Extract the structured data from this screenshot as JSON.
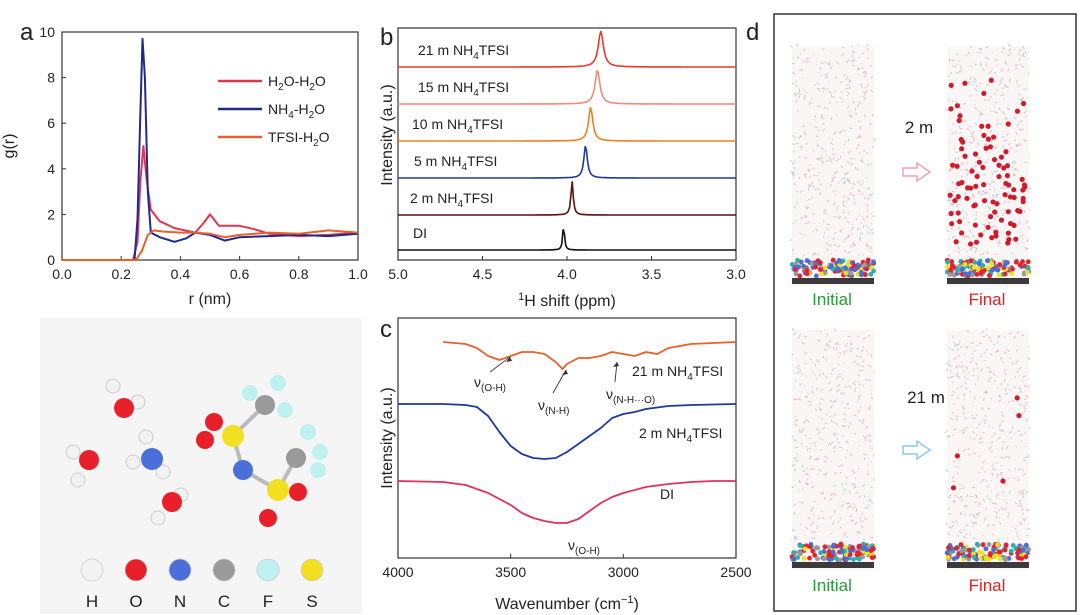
{
  "colors": {
    "h2o": "#e23650",
    "nh4": "#1f2a8a",
    "tfsi": "#e8612c",
    "green": "#2a9a3a",
    "red": "#e02020",
    "pink_arrow": "#f2a0b0",
    "blue_arrow": "#8cc8ec"
  },
  "panels": {
    "a": "a",
    "b": "b",
    "c": "c",
    "d": "d"
  },
  "atom_legend": [
    {
      "symbol": "H",
      "color": "#f2f2f2",
      "icon": "hydrogen-sphere"
    },
    {
      "symbol": "O",
      "color": "#e8202a",
      "icon": "oxygen-sphere"
    },
    {
      "symbol": "N",
      "color": "#4a6fd8",
      "icon": "nitrogen-sphere"
    },
    {
      "symbol": "C",
      "color": "#9a9a9a",
      "icon": "carbon-sphere"
    },
    {
      "symbol": "F",
      "color": "#bff1f0",
      "icon": "fluorine-sphere"
    },
    {
      "symbol": "S",
      "color": "#f2e020",
      "icon": "sulfur-sphere"
    }
  ],
  "md_panel": {
    "top_label": "2 m",
    "bottom_label": "21 m",
    "initial": "Initial",
    "final": "Final"
  },
  "chart_data": [
    {
      "panel": "a",
      "type": "line",
      "xlabel": "r (nm)",
      "ylabel": "g(r)",
      "xlim": [
        0.0,
        1.0
      ],
      "ylim": [
        0,
        10
      ],
      "xticks": [
        "0.0",
        "0.2",
        "0.4",
        "0.6",
        "0.8",
        "1.0"
      ],
      "yticks": [
        "0",
        "2",
        "4",
        "6",
        "8",
        "10"
      ],
      "legend_position": "right",
      "series": [
        {
          "name": "H2O-H2O",
          "legend_main": "H",
          "legend_parts": [
            "H",
            "2",
            "O-H",
            "2",
            "O"
          ],
          "color": "#e23650",
          "x": [
            0.0,
            0.24,
            0.255,
            0.265,
            0.275,
            0.285,
            0.3,
            0.33,
            0.38,
            0.45,
            0.48,
            0.5,
            0.53,
            0.6,
            0.65,
            0.7,
            0.8,
            0.9,
            1.0
          ],
          "y": [
            0,
            0,
            0.8,
            3.5,
            5.0,
            3.6,
            2.2,
            1.7,
            1.4,
            1.2,
            1.65,
            2.0,
            1.5,
            1.5,
            1.35,
            1.15,
            1.05,
            1.1,
            1.2
          ]
        },
        {
          "name": "NH4-H2O",
          "legend_main": "NH",
          "legend_parts": [
            "NH",
            "4",
            "-H",
            "2",
            "O"
          ],
          "color": "#1f2a8a",
          "x": [
            0.0,
            0.245,
            0.255,
            0.265,
            0.272,
            0.28,
            0.29,
            0.3,
            0.33,
            0.38,
            0.42,
            0.45,
            0.5,
            0.55,
            0.6,
            0.7,
            0.8,
            0.9,
            1.0
          ],
          "y": [
            0,
            0,
            1.8,
            6.5,
            9.7,
            8.0,
            3.0,
            1.2,
            1.0,
            0.8,
            0.95,
            1.2,
            1.1,
            0.85,
            1.0,
            1.05,
            1.1,
            1.05,
            1.15
          ]
        },
        {
          "name": "TFSI-H2O",
          "legend_main": "TFSI",
          "legend_parts": [
            "TFSI-H",
            "2",
            "O"
          ],
          "color": "#e8612c",
          "x": [
            0.0,
            0.25,
            0.27,
            0.29,
            0.31,
            0.34,
            0.4,
            0.45,
            0.5,
            0.55,
            0.6,
            0.7,
            0.8,
            0.9,
            1.0
          ],
          "y": [
            0,
            0,
            0.4,
            1.1,
            1.3,
            1.25,
            1.2,
            1.2,
            1.15,
            1.0,
            1.1,
            1.2,
            1.15,
            1.3,
            1.2
          ]
        }
      ]
    },
    {
      "panel": "b",
      "type": "line",
      "xlabel_main": "H shift (ppm)",
      "xlabel_sup": "1",
      "ylabel": "Intensity (a.u.)",
      "xlim": [
        5.0,
        3.0
      ],
      "xticks": [
        "5.0",
        "4.5",
        "4.0",
        "3.5",
        "3.0"
      ],
      "series": [
        {
          "name": "DI",
          "parts": [
            "DI"
          ],
          "peak": 4.02,
          "width": 0.006,
          "height": 26,
          "color": "#111111"
        },
        {
          "name": "2 m NH4TFSI",
          "parts": [
            "2 m NH",
            "4",
            "TFSI"
          ],
          "peak": 3.97,
          "width": 0.008,
          "height": 34,
          "color": "#5a0f0f"
        },
        {
          "name": "5 m NH4TFSI",
          "parts": [
            "5 m NH",
            "4",
            "TFSI"
          ],
          "peak": 3.89,
          "width": 0.012,
          "height": 33,
          "color": "#1f3a96"
        },
        {
          "name": "10 m NH4TFSI",
          "parts": [
            "10 m NH",
            "4",
            "TFSI"
          ],
          "peak": 3.86,
          "width": 0.015,
          "height": 34,
          "color": "#f07f20"
        },
        {
          "name": "15 m NH4TFSI",
          "parts": [
            "15 m NH",
            "4",
            "TFSI"
          ],
          "peak": 3.82,
          "width": 0.017,
          "height": 34,
          "color": "#f08a7a"
        },
        {
          "name": "21 m NH4TFSI",
          "parts": [
            "21 m NH",
            "4",
            "TFSI"
          ],
          "peak": 3.8,
          "width": 0.018,
          "height": 36,
          "color": "#e83a2a"
        }
      ]
    },
    {
      "panel": "c",
      "type": "line",
      "xlabel_main": "Wavenumber (cm",
      "xlabel_sup": "−1",
      "xlabel_end": ")",
      "ylabel": "Intensity (a.u.)",
      "xlim": [
        4000,
        2500
      ],
      "xticks": [
        "4000",
        "3500",
        "3000",
        "2500"
      ],
      "series": [
        {
          "name": "21 m NH4TFSI",
          "parts": [
            "21 m NH",
            "4",
            "TFSI"
          ],
          "color": "#e8612c",
          "x": [
            3800,
            3700,
            3650,
            3600,
            3550,
            3500,
            3450,
            3400,
            3350,
            3300,
            3270,
            3250,
            3200,
            3150,
            3100,
            3050,
            3000,
            2950,
            2900,
            2850,
            2800,
            2750,
            2700,
            2600,
            2500
          ],
          "y": [
            0,
            -2,
            -6,
            -14,
            -18,
            -14,
            -10,
            -10,
            -12,
            -20,
            -27,
            -22,
            -16,
            -16,
            -14,
            -10,
            -12,
            -14,
            -10,
            -12,
            -6,
            -4,
            -2,
            -1,
            0
          ]
        },
        {
          "name": "2 m NH4TFSI",
          "parts": [
            "2 m NH",
            "4",
            "TFSI"
          ],
          "color": "#1f3a96",
          "x": [
            4000,
            3800,
            3700,
            3650,
            3600,
            3550,
            3500,
            3450,
            3400,
            3350,
            3300,
            3250,
            3200,
            3150,
            3100,
            3050,
            3000,
            2950,
            2900,
            2800,
            2700,
            2500
          ],
          "y": [
            0,
            0,
            -1,
            -3,
            -12,
            -28,
            -42,
            -50,
            -54,
            -55,
            -54,
            -48,
            -40,
            -32,
            -24,
            -14,
            -10,
            -8,
            -5,
            -2,
            -1,
            0
          ]
        },
        {
          "name": "DI",
          "parts": [
            "DI"
          ],
          "color": "#e2305a",
          "x": [
            4000,
            3800,
            3700,
            3600,
            3500,
            3450,
            3400,
            3350,
            3300,
            3250,
            3200,
            3150,
            3100,
            3050,
            3000,
            2900,
            2800,
            2700,
            2600,
            2500
          ],
          "y": [
            0,
            -1,
            -4,
            -12,
            -24,
            -32,
            -37,
            -40,
            -42,
            -42,
            -38,
            -30,
            -22,
            -16,
            -12,
            -6,
            -3,
            -1,
            0,
            0
          ]
        }
      ],
      "annotations": [
        {
          "parts": [
            "ν",
            "(O-H)"
          ],
          "x": 3600
        },
        {
          "parts": [
            "ν",
            "(N-H)"
          ],
          "x": 3270
        },
        {
          "parts": [
            "ν",
            "(N-H···O)"
          ],
          "x": 3120
        },
        {
          "parts": [
            "ν",
            "(O-H)"
          ],
          "x": 3270
        }
      ]
    }
  ]
}
